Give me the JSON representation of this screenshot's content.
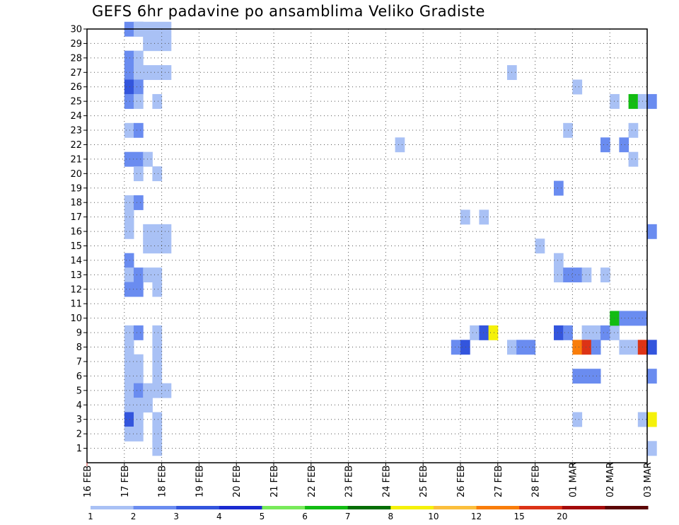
{
  "chart_data": {
    "type": "heatmap",
    "title": "GEFS 6hr padavine po ansamblima Veliko Gradiste",
    "x_labels": [
      "16 FEB",
      "17 FEB",
      "18 FEB",
      "19 FEB",
      "20 FEB",
      "21 FEB",
      "22 FEB",
      "23 FEB",
      "24 FEB",
      "25 FEB",
      "26 FEB",
      "27 FEB",
      "28 FEB",
      "01 MAR",
      "02 MAR",
      "03 MAR"
    ],
    "x_step_hours": 6,
    "x_range_steps": [
      0,
      60
    ],
    "y_labels": [
      "1",
      "2",
      "3",
      "4",
      "5",
      "6",
      "7",
      "8",
      "9",
      "10",
      "11",
      "12",
      "13",
      "14",
      "15",
      "16",
      "17",
      "18",
      "19",
      "20",
      "21",
      "22",
      "23",
      "24",
      "25",
      "26",
      "27",
      "28",
      "29",
      "30"
    ],
    "y_range": [
      0,
      30
    ],
    "grid": "dotted",
    "colorbar": {
      "labels": [
        "1",
        "2",
        "3",
        "4",
        "5",
        "6",
        "7",
        "8",
        "10",
        "12",
        "15",
        "20"
      ],
      "colors": [
        "#a9c1f5",
        "#6a8cf0",
        "#3355dd",
        "#1a2ad0",
        "#78ea5a",
        "#12bc12",
        "#046e04",
        "#f5f10a",
        "#fbbf3c",
        "#f97d0a",
        "#dc3316",
        "#a40a0a",
        "#5c0505"
      ]
    },
    "cells": [
      [
        30,
        4,
        6,
        1
      ],
      [
        30,
        5,
        9,
        0
      ],
      [
        29,
        6,
        9,
        0
      ],
      [
        28,
        4,
        5,
        1
      ],
      [
        28,
        5,
        6,
        0
      ],
      [
        27,
        4,
        5,
        1
      ],
      [
        27,
        5,
        9,
        0
      ],
      [
        26,
        4,
        5,
        2
      ],
      [
        26,
        5,
        6,
        1
      ],
      [
        25,
        4,
        5,
        1
      ],
      [
        25,
        5,
        6,
        0
      ],
      [
        25,
        7,
        8,
        0
      ],
      [
        23,
        4,
        5,
        0
      ],
      [
        23,
        5,
        6,
        1
      ],
      [
        21,
        4,
        6,
        1
      ],
      [
        21,
        6,
        7,
        0
      ],
      [
        20,
        5,
        6,
        0
      ],
      [
        20,
        7,
        8,
        0
      ],
      [
        18,
        4,
        5,
        0
      ],
      [
        18,
        5,
        6,
        1
      ],
      [
        17,
        4,
        5,
        0
      ],
      [
        16,
        4,
        5,
        0
      ],
      [
        16,
        6,
        9,
        0
      ],
      [
        15,
        6,
        9,
        0
      ],
      [
        14,
        4,
        5,
        1
      ],
      [
        13,
        4,
        5,
        0
      ],
      [
        13,
        5,
        6,
        1
      ],
      [
        13,
        6,
        8,
        0
      ],
      [
        12,
        4,
        6,
        1
      ],
      [
        12,
        7,
        8,
        0
      ],
      [
        9,
        4,
        5,
        0
      ],
      [
        9,
        5,
        6,
        1
      ],
      [
        9,
        7,
        8,
        0
      ],
      [
        8,
        4,
        5,
        0
      ],
      [
        8,
        7,
        8,
        0
      ],
      [
        7,
        4,
        6,
        0
      ],
      [
        7,
        7,
        8,
        0
      ],
      [
        6,
        4,
        6,
        0
      ],
      [
        6,
        7,
        8,
        0
      ],
      [
        5,
        4,
        5,
        0
      ],
      [
        5,
        5,
        6,
        1
      ],
      [
        5,
        6,
        9,
        0
      ],
      [
        4,
        4,
        7,
        0
      ],
      [
        3,
        4,
        5,
        2
      ],
      [
        3,
        5,
        6,
        0
      ],
      [
        3,
        7,
        8,
        0
      ],
      [
        2,
        4,
        6,
        0
      ],
      [
        2,
        7,
        8,
        0
      ],
      [
        1,
        7,
        8,
        0
      ],
      [
        27,
        45,
        46,
        0
      ],
      [
        22,
        33,
        34,
        0
      ],
      [
        17,
        40,
        41,
        0
      ],
      [
        17,
        42,
        43,
        0
      ],
      [
        15,
        48,
        49,
        0
      ],
      [
        14,
        50,
        51,
        0
      ],
      [
        13,
        50,
        51,
        0
      ],
      [
        13,
        51,
        53,
        1
      ],
      [
        13,
        53,
        54,
        0
      ],
      [
        13,
        55,
        56,
        0
      ],
      [
        9,
        41,
        42,
        0
      ],
      [
        9,
        42,
        43,
        2
      ],
      [
        9,
        43,
        44,
        7
      ],
      [
        9,
        50,
        51,
        2
      ],
      [
        9,
        51,
        52,
        1
      ],
      [
        9,
        53,
        55,
        0
      ],
      [
        9,
        55,
        56,
        1
      ],
      [
        9,
        56,
        57,
        0
      ],
      [
        8,
        39,
        40,
        1
      ],
      [
        8,
        40,
        41,
        2
      ],
      [
        8,
        45,
        46,
        0
      ],
      [
        8,
        46,
        48,
        1
      ],
      [
        8,
        52,
        53,
        9
      ],
      [
        8,
        53,
        54,
        10
      ],
      [
        8,
        54,
        55,
        1
      ],
      [
        8,
        57,
        59,
        0
      ],
      [
        8,
        59,
        60,
        10
      ],
      [
        8,
        60,
        61,
        2
      ],
      [
        6,
        52,
        55,
        1
      ],
      [
        6,
        60,
        61,
        1
      ],
      [
        3,
        52,
        53,
        0
      ],
      [
        3,
        59,
        60,
        0
      ],
      [
        3,
        60,
        61,
        7
      ],
      [
        1,
        60,
        61,
        0
      ],
      [
        26,
        52,
        53,
        0
      ],
      [
        25,
        56,
        57,
        0
      ],
      [
        25,
        58,
        59,
        5
      ],
      [
        25,
        59,
        60,
        0
      ],
      [
        25,
        60,
        61,
        1
      ],
      [
        23,
        51,
        52,
        0
      ],
      [
        23,
        58,
        59,
        0
      ],
      [
        22,
        55,
        56,
        1
      ],
      [
        22,
        57,
        58,
        1
      ],
      [
        21,
        58,
        59,
        0
      ],
      [
        19,
        50,
        51,
        1
      ],
      [
        16,
        60,
        61,
        1
      ],
      [
        10,
        56,
        57,
        5
      ],
      [
        10,
        57,
        60,
        1
      ]
    ]
  }
}
